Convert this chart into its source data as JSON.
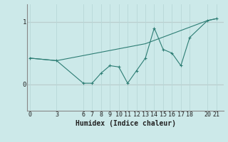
{
  "title": "",
  "xlabel": "Humidex (Indice chaleur)",
  "background_color": "#cce9e9",
  "line_color": "#2d7d74",
  "grid_color": "#b8d8d8",
  "hline_color": "#c0a0a0",
  "x_ticks": [
    0,
    3,
    6,
    7,
    8,
    9,
    10,
    11,
    12,
    13,
    14,
    15,
    16,
    17,
    18,
    20,
    21
  ],
  "xlim": [
    -0.3,
    21.8
  ],
  "ylim": [
    -0.42,
    1.28
  ],
  "y_ticks": [
    0,
    1
  ],
  "line1_x": [
    0,
    3,
    6,
    7,
    8,
    9,
    10,
    11,
    12,
    13,
    14,
    15,
    16,
    17,
    18,
    20,
    21
  ],
  "line1_y": [
    0.42,
    0.38,
    0.02,
    0.02,
    0.18,
    0.3,
    0.28,
    0.02,
    0.22,
    0.42,
    0.9,
    0.56,
    0.5,
    0.3,
    0.75,
    1.02,
    1.05
  ],
  "line2_x": [
    0,
    3,
    13,
    20,
    21
  ],
  "line2_y": [
    0.42,
    0.38,
    0.65,
    1.02,
    1.05
  ],
  "tick_fontsize": 6.0,
  "xlabel_fontsize": 7.0
}
